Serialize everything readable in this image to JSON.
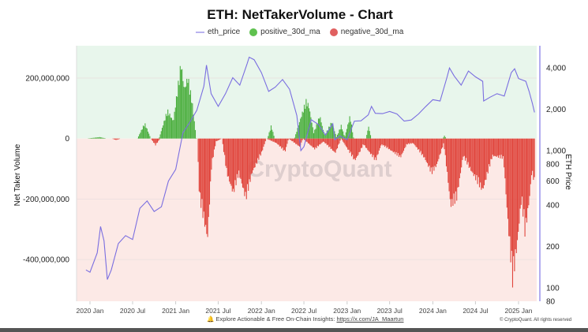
{
  "colors": {
    "positive": "#4caf3f",
    "negative": "#e0453c",
    "price": "#7a6ee0",
    "bg_positive": "#e8f6ec",
    "bg_negative": "#fce9e6",
    "price_axis": "#b3adf0"
  },
  "footer": {
    "bell_icon": "bell-icon",
    "text": "Explore Actionable & Free On-Chain Insights: ",
    "link": "https://x.com/JA_Maartun",
    "copyright": "© CryptoQuant. All rights reserved"
  },
  "watermark": "CryptoQuant",
  "chart_data": {
    "type": "bar+line",
    "title": "ETH: NetTakerVolume - Chart",
    "ylabel": "Net Taker Volume",
    "y2label": "ETH Price",
    "legend_position": "top",
    "legend": [
      "eth_price",
      "positive_30d_ma",
      "negative_30d_ma"
    ],
    "ylim": [
      -538000000,
      306000000
    ],
    "y2lim": [
      80,
      5900
    ],
    "y2scale": "log",
    "yticks": [
      {
        "v": 200,
        "label": "200,000,000"
      },
      {
        "v": 0,
        "label": "0"
      },
      {
        "v": -200,
        "label": "-200,000,000"
      },
      {
        "v": -400,
        "label": "-400,000,000"
      }
    ],
    "y2ticks": [
      {
        "v": 4000,
        "label": "4,000"
      },
      {
        "v": 2000,
        "label": "2,000"
      },
      {
        "v": 1000,
        "label": "1,000"
      },
      {
        "v": 800,
        "label": "800"
      },
      {
        "v": 600,
        "label": "600"
      },
      {
        "v": 400,
        "label": "400"
      },
      {
        "v": 200,
        "label": "200"
      },
      {
        "v": 100,
        "label": "100"
      },
      {
        "v": 80,
        "label": "80"
      }
    ],
    "xticks": [
      {
        "d": "2020-01-01",
        "label": "2020 Jan"
      },
      {
        "d": "2020-07-01",
        "label": "2020 Jul"
      },
      {
        "d": "2021-01-01",
        "label": "2021 Jan"
      },
      {
        "d": "2021-07-01",
        "label": "2021 Jul"
      },
      {
        "d": "2022-01-01",
        "label": "2022 Jan"
      },
      {
        "d": "2022-07-01",
        "label": "2022 Jul"
      },
      {
        "d": "2023-01-01",
        "label": "2023 Jan"
      },
      {
        "d": "2023-07-01",
        "label": "2023 Jul"
      },
      {
        "d": "2024-01-01",
        "label": "2024 Jan"
      },
      {
        "d": "2024-07-01",
        "label": "2024 Jul"
      },
      {
        "d": "2025-01-01",
        "label": "2025 Jan"
      }
    ],
    "value_unit": "millions",
    "series": [
      {
        "name": "positive_30d_ma",
        "points": [
          [
            "2019-12-15",
            0
          ],
          [
            "2020-02-10",
            5
          ],
          [
            "2020-03-10",
            0
          ],
          [
            "2020-07-20",
            0
          ],
          [
            "2020-08-20",
            54
          ],
          [
            "2020-09-15",
            0
          ],
          [
            "2020-10-20",
            0
          ],
          [
            "2020-11-25",
            99
          ],
          [
            "2020-12-20",
            60
          ],
          [
            "2021-01-22",
            264
          ],
          [
            "2021-02-05",
            170
          ],
          [
            "2021-02-20",
            215
          ],
          [
            "2021-03-10",
            130
          ],
          [
            "2021-03-28",
            0
          ],
          [
            "2022-01-25",
            0
          ],
          [
            "2022-02-10",
            45
          ],
          [
            "2022-02-25",
            0
          ],
          [
            "2022-05-20",
            0
          ],
          [
            "2022-07-08",
            132
          ],
          [
            "2022-07-20",
            115
          ],
          [
            "2022-08-10",
            20
          ],
          [
            "2022-09-05",
            80
          ],
          [
            "2022-09-25",
            10
          ],
          [
            "2022-10-25",
            58
          ],
          [
            "2022-11-15",
            5
          ],
          [
            "2022-12-05",
            46
          ],
          [
            "2022-12-20",
            5
          ],
          [
            "2023-01-12",
            80
          ],
          [
            "2023-01-27",
            0
          ],
          [
            "2023-03-20",
            0
          ],
          [
            "2023-04-01",
            42
          ],
          [
            "2023-04-12",
            0
          ],
          [
            "2024-02-10",
            0
          ],
          [
            "2024-02-18",
            10
          ],
          [
            "2024-02-26",
            0
          ],
          [
            "2025-03-10",
            0
          ]
        ]
      },
      {
        "name": "negative_30d_ma",
        "points": [
          [
            "2019-12-15",
            0
          ],
          [
            "2020-04-01",
            0
          ],
          [
            "2020-04-20",
            -5
          ],
          [
            "2020-05-10",
            0
          ],
          [
            "2020-09-15",
            0
          ],
          [
            "2020-10-05",
            -23
          ],
          [
            "2020-10-25",
            0
          ],
          [
            "2021-04-01",
            0
          ],
          [
            "2021-04-10",
            -200
          ],
          [
            "2021-05-15",
            -347
          ],
          [
            "2021-06-01",
            -94
          ],
          [
            "2021-06-20",
            -10
          ],
          [
            "2021-07-15",
            0
          ],
          [
            "2021-08-05",
            -120
          ],
          [
            "2021-09-01",
            -190
          ],
          [
            "2021-09-25",
            -120
          ],
          [
            "2021-10-25",
            -210
          ],
          [
            "2021-11-20",
            -120
          ],
          [
            "2021-12-31",
            -50
          ],
          [
            "2022-01-20",
            0
          ],
          [
            "2022-03-05",
            -16
          ],
          [
            "2022-04-10",
            -46
          ],
          [
            "2022-04-25",
            0
          ],
          [
            "2022-06-12",
            -29
          ],
          [
            "2022-06-25",
            0
          ],
          [
            "2022-08-15",
            -37
          ],
          [
            "2022-09-20",
            -10
          ],
          [
            "2022-11-10",
            -50
          ],
          [
            "2022-12-05",
            0
          ],
          [
            "2023-02-01",
            -77
          ],
          [
            "2023-02-20",
            -50
          ],
          [
            "2023-03-10",
            -20
          ],
          [
            "2023-05-01",
            -77
          ],
          [
            "2023-05-25",
            -20
          ],
          [
            "2023-06-20",
            -33
          ],
          [
            "2023-08-15",
            -65
          ],
          [
            "2023-09-10",
            -20
          ],
          [
            "2023-10-08",
            -16
          ],
          [
            "2023-11-25",
            -68
          ],
          [
            "2023-12-25",
            -120
          ],
          [
            "2024-01-15",
            -94
          ],
          [
            "2024-02-15",
            -16
          ],
          [
            "2024-03-03",
            -138
          ],
          [
            "2024-03-15",
            -234
          ],
          [
            "2024-04-10",
            -208
          ],
          [
            "2024-05-08",
            -60
          ],
          [
            "2024-06-10",
            -111
          ],
          [
            "2024-07-30",
            -181
          ],
          [
            "2024-09-10",
            -60
          ],
          [
            "2024-10-27",
            -68
          ],
          [
            "2024-11-15",
            -294
          ],
          [
            "2024-12-05",
            -494
          ],
          [
            "2024-12-25",
            -364
          ],
          [
            "2025-01-12",
            -207
          ],
          [
            "2025-01-27",
            -330
          ],
          [
            "2025-02-15",
            -207
          ],
          [
            "2025-02-25",
            -111
          ],
          [
            "2025-03-08",
            -155
          ]
        ]
      },
      {
        "name": "eth_price",
        "axis": "right",
        "points": [
          [
            "2019-12-15",
            135
          ],
          [
            "2020-01-01",
            130
          ],
          [
            "2020-02-01",
            180
          ],
          [
            "2020-02-15",
            280
          ],
          [
            "2020-03-01",
            220
          ],
          [
            "2020-03-15",
            115
          ],
          [
            "2020-04-01",
            135
          ],
          [
            "2020-05-01",
            210
          ],
          [
            "2020-06-01",
            240
          ],
          [
            "2020-07-01",
            225
          ],
          [
            "2020-08-01",
            380
          ],
          [
            "2020-09-01",
            430
          ],
          [
            "2020-10-01",
            360
          ],
          [
            "2020-11-01",
            390
          ],
          [
            "2020-12-01",
            600
          ],
          [
            "2021-01-01",
            730
          ],
          [
            "2021-02-01",
            1350
          ],
          [
            "2021-03-01",
            1600
          ],
          [
            "2021-04-01",
            1970
          ],
          [
            "2021-05-01",
            2950
          ],
          [
            "2021-05-12",
            4200
          ],
          [
            "2021-06-01",
            2600
          ],
          [
            "2021-07-01",
            2100
          ],
          [
            "2021-08-01",
            2600
          ],
          [
            "2021-09-01",
            3400
          ],
          [
            "2021-10-01",
            3000
          ],
          [
            "2021-11-01",
            4300
          ],
          [
            "2021-11-10",
            4800
          ],
          [
            "2021-12-01",
            4600
          ],
          [
            "2022-01-01",
            3700
          ],
          [
            "2022-02-01",
            2700
          ],
          [
            "2022-03-01",
            2900
          ],
          [
            "2022-04-01",
            3300
          ],
          [
            "2022-05-01",
            2800
          ],
          [
            "2022-06-01",
            1800
          ],
          [
            "2022-06-18",
            1000
          ],
          [
            "2022-07-01",
            1070
          ],
          [
            "2022-08-01",
            1680
          ],
          [
            "2022-09-01",
            1550
          ],
          [
            "2022-10-01",
            1300
          ],
          [
            "2022-11-01",
            1570
          ],
          [
            "2022-11-10",
            1200
          ],
          [
            "2022-12-01",
            1280
          ],
          [
            "2023-01-01",
            1200
          ],
          [
            "2023-02-01",
            1640
          ],
          [
            "2023-03-01",
            1650
          ],
          [
            "2023-04-01",
            1820
          ],
          [
            "2023-04-15",
            2100
          ],
          [
            "2023-05-01",
            1870
          ],
          [
            "2023-06-01",
            1860
          ],
          [
            "2023-07-01",
            1930
          ],
          [
            "2023-08-01",
            1850
          ],
          [
            "2023-09-01",
            1640
          ],
          [
            "2023-10-01",
            1670
          ],
          [
            "2023-11-01",
            1850
          ],
          [
            "2023-12-01",
            2090
          ],
          [
            "2024-01-01",
            2350
          ],
          [
            "2024-02-01",
            2300
          ],
          [
            "2024-03-01",
            3400
          ],
          [
            "2024-03-12",
            4000
          ],
          [
            "2024-04-01",
            3500
          ],
          [
            "2024-05-01",
            3000
          ],
          [
            "2024-06-01",
            3800
          ],
          [
            "2024-07-01",
            3450
          ],
          [
            "2024-08-01",
            3200
          ],
          [
            "2024-08-05",
            2300
          ],
          [
            "2024-09-01",
            2450
          ],
          [
            "2024-10-01",
            2600
          ],
          [
            "2024-11-01",
            2500
          ],
          [
            "2024-12-01",
            3700
          ],
          [
            "2024-12-15",
            3950
          ],
          [
            "2025-01-01",
            3350
          ],
          [
            "2025-02-01",
            3200
          ],
          [
            "2025-02-15",
            2700
          ],
          [
            "2025-03-01",
            2200
          ],
          [
            "2025-03-10",
            1900
          ]
        ]
      }
    ]
  }
}
